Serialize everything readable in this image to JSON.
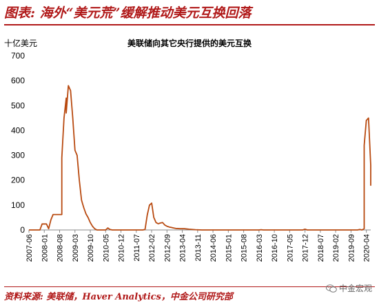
{
  "figure_title": "图表: 海外“美元荒”缓解推动美元互换回落",
  "source_note": "资料来源: 美联储，Haver Analytics，中金公司研究部",
  "watermark": {
    "text": "中金宏观",
    "icon": "wechat-icon"
  },
  "chart_data": {
    "type": "line",
    "title": "美联储向其它央行提供的美元互换",
    "unit_label": "十亿美元",
    "ylabel": "",
    "xlabel": "",
    "ylim": [
      0,
      700
    ],
    "yticks": [
      0,
      100,
      200,
      300,
      400,
      500,
      600,
      700
    ],
    "xlim": [
      "2007-06",
      "2020-06"
    ],
    "xticks": [
      "2007-06",
      "2008-01",
      "2008-08",
      "2009-03",
      "2009-10",
      "2010-05",
      "2010-12",
      "2011-07",
      "2012-02",
      "2012-09",
      "2013-04",
      "2013-11",
      "2014-06",
      "2015-01",
      "2015-08",
      "2016-03",
      "2016-10",
      "2017-05",
      "2017-12",
      "2018-07",
      "2019-02",
      "2019-09",
      "2020-04"
    ],
    "grid": false,
    "series": [
      {
        "color": "#b8490f",
        "points": [
          [
            "2007-06",
            0
          ],
          [
            "2007-11",
            0
          ],
          [
            "2007-12",
            24
          ],
          [
            "2008-01",
            24
          ],
          [
            "2008-02",
            24
          ],
          [
            "2008-03",
            5
          ],
          [
            "2008-04",
            40
          ],
          [
            "2008-05",
            62
          ],
          [
            "2008-06",
            62
          ],
          [
            "2008-07",
            62
          ],
          [
            "2008-08",
            62
          ],
          [
            "2008-09",
            62
          ],
          [
            "2008-09",
            290
          ],
          [
            "2008-10",
            450
          ],
          [
            "2008-11",
            530
          ],
          [
            "2008-11",
            470
          ],
          [
            "2008-12",
            580
          ],
          [
            "2009-01",
            560
          ],
          [
            "2009-02",
            450
          ],
          [
            "2009-03",
            320
          ],
          [
            "2009-04",
            300
          ],
          [
            "2009-05",
            200
          ],
          [
            "2009-06",
            120
          ],
          [
            "2009-07",
            90
          ],
          [
            "2009-08",
            65
          ],
          [
            "2009-09",
            50
          ],
          [
            "2009-10",
            30
          ],
          [
            "2009-11",
            15
          ],
          [
            "2009-12",
            5
          ],
          [
            "2010-01",
            0
          ],
          [
            "2010-05",
            0
          ],
          [
            "2010-06",
            8
          ],
          [
            "2010-07",
            2
          ],
          [
            "2010-08",
            0
          ],
          [
            "2011-09",
            0
          ],
          [
            "2011-10",
            0
          ],
          [
            "2011-11",
            2
          ],
          [
            "2011-12",
            60
          ],
          [
            "2012-01",
            100
          ],
          [
            "2012-02",
            108
          ],
          [
            "2012-03",
            50
          ],
          [
            "2012-04",
            30
          ],
          [
            "2012-05",
            25
          ],
          [
            "2012-06",
            28
          ],
          [
            "2012-07",
            30
          ],
          [
            "2012-08",
            20
          ],
          [
            "2012-09",
            15
          ],
          [
            "2012-10",
            12
          ],
          [
            "2012-11",
            10
          ],
          [
            "2012-12",
            8
          ],
          [
            "2013-01",
            6
          ],
          [
            "2013-03",
            5
          ],
          [
            "2013-05",
            5
          ],
          [
            "2013-07",
            3
          ],
          [
            "2013-10",
            1
          ],
          [
            "2014-01",
            0
          ],
          [
            "2016-03",
            0
          ],
          [
            "2016-04",
            1
          ],
          [
            "2016-05",
            0
          ],
          [
            "2017-11",
            0
          ],
          [
            "2017-12",
            3
          ],
          [
            "2018-01",
            0
          ],
          [
            "2019-12",
            0
          ],
          [
            "2020-01",
            2
          ],
          [
            "2020-02",
            0
          ],
          [
            "2020-03",
            5
          ],
          [
            "2020-03",
            340
          ],
          [
            "2020-04",
            440
          ],
          [
            "2020-05",
            450
          ],
          [
            "2020-05",
            449
          ],
          [
            "2020-06",
            260
          ],
          [
            "2020-06",
            178
          ]
        ]
      }
    ]
  }
}
